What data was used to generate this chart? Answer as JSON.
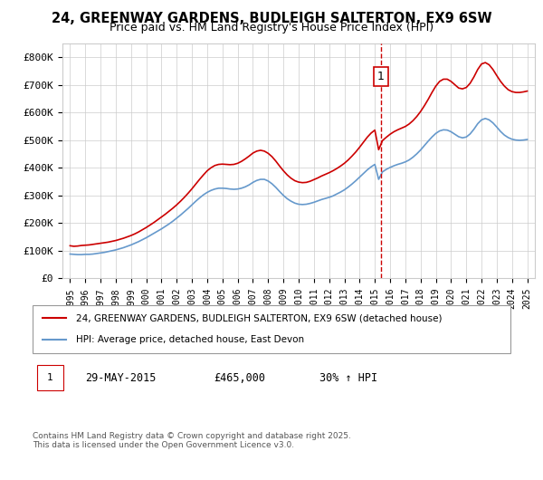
{
  "title": "24, GREENWAY GARDENS, BUDLEIGH SALTERTON, EX9 6SW",
  "subtitle": "Price paid vs. HM Land Registry's House Price Index (HPI)",
  "legend_line1": "24, GREENWAY GARDENS, BUDLEIGH SALTERTON, EX9 6SW (detached house)",
  "legend_line2": "HPI: Average price, detached house, East Devon",
  "annotation_label": "1",
  "annotation_date": "29-MAY-2015",
  "annotation_price": "£465,000",
  "annotation_hpi": "30% ↑ HPI",
  "footer": "Contains HM Land Registry data © Crown copyright and database right 2025.\nThis data is licensed under the Open Government Licence v3.0.",
  "vline_x": 2015.41,
  "red_color": "#cc0000",
  "blue_color": "#6699cc",
  "ylim": [
    0,
    850000
  ],
  "yticks": [
    0,
    100000,
    200000,
    300000,
    400000,
    500000,
    600000,
    700000,
    800000
  ],
  "ytick_labels": [
    "£0",
    "£100K",
    "£200K",
    "£300K",
    "£400K",
    "£500K",
    "£600K",
    "£700K",
    "£800K"
  ],
  "xlim": [
    1994.5,
    2025.5
  ],
  "xticks": [
    1995,
    1996,
    1997,
    1998,
    1999,
    2000,
    2001,
    2002,
    2003,
    2004,
    2005,
    2006,
    2007,
    2008,
    2009,
    2010,
    2011,
    2012,
    2013,
    2014,
    2015,
    2016,
    2017,
    2018,
    2019,
    2020,
    2021,
    2022,
    2023,
    2024,
    2025
  ],
  "red_x": [
    1995.0,
    1995.25,
    1995.5,
    1995.75,
    1996.0,
    1996.25,
    1996.5,
    1996.75,
    1997.0,
    1997.25,
    1997.5,
    1997.75,
    1998.0,
    1998.25,
    1998.5,
    1998.75,
    1999.0,
    1999.25,
    1999.5,
    1999.75,
    2000.0,
    2000.25,
    2000.5,
    2000.75,
    2001.0,
    2001.25,
    2001.5,
    2001.75,
    2002.0,
    2002.25,
    2002.5,
    2002.75,
    2003.0,
    2003.25,
    2003.5,
    2003.75,
    2004.0,
    2004.25,
    2004.5,
    2004.75,
    2005.0,
    2005.25,
    2005.5,
    2005.75,
    2006.0,
    2006.25,
    2006.5,
    2006.75,
    2007.0,
    2007.25,
    2007.5,
    2007.75,
    2008.0,
    2008.25,
    2008.5,
    2008.75,
    2009.0,
    2009.25,
    2009.5,
    2009.75,
    2010.0,
    2010.25,
    2010.5,
    2010.75,
    2011.0,
    2011.25,
    2011.5,
    2011.75,
    2012.0,
    2012.25,
    2012.5,
    2012.75,
    2013.0,
    2013.25,
    2013.5,
    2013.75,
    2014.0,
    2014.25,
    2014.5,
    2014.75,
    2015.0,
    2015.25,
    2015.5,
    2015.75,
    2016.0,
    2016.25,
    2016.5,
    2016.75,
    2017.0,
    2017.25,
    2017.5,
    2017.75,
    2018.0,
    2018.25,
    2018.5,
    2018.75,
    2019.0,
    2019.25,
    2019.5,
    2019.75,
    2020.0,
    2020.25,
    2020.5,
    2020.75,
    2021.0,
    2021.25,
    2021.5,
    2021.75,
    2022.0,
    2022.25,
    2022.5,
    2022.75,
    2023.0,
    2023.25,
    2023.5,
    2023.75,
    2024.0,
    2024.25,
    2024.5,
    2024.75,
    2025.0
  ],
  "red_y": [
    118000,
    116000,
    117000,
    119000,
    120000,
    121000,
    123000,
    125000,
    127000,
    129000,
    131000,
    134000,
    137000,
    141000,
    145000,
    150000,
    155000,
    161000,
    168000,
    176000,
    184000,
    193000,
    202000,
    212000,
    222000,
    232000,
    243000,
    254000,
    266000,
    279000,
    293000,
    308000,
    324000,
    341000,
    358000,
    374000,
    389000,
    400000,
    408000,
    412000,
    413000,
    412000,
    411000,
    412000,
    416000,
    423000,
    432000,
    442000,
    453000,
    460000,
    463000,
    460000,
    452000,
    440000,
    424000,
    406000,
    389000,
    374000,
    362000,
    353000,
    348000,
    346000,
    347000,
    351000,
    357000,
    363000,
    370000,
    376000,
    382000,
    389000,
    397000,
    406000,
    416000,
    428000,
    442000,
    457000,
    474000,
    492000,
    510000,
    525000,
    536000,
    465000,
    498000,
    510000,
    521000,
    530000,
    537000,
    543000,
    549000,
    558000,
    570000,
    585000,
    603000,
    624000,
    647000,
    672000,
    695000,
    712000,
    720000,
    720000,
    712000,
    700000,
    688000,
    685000,
    690000,
    705000,
    728000,
    755000,
    775000,
    780000,
    772000,
    755000,
    733000,
    712000,
    695000,
    682000,
    675000,
    672000,
    672000,
    674000,
    677000
  ],
  "blue_x": [
    1995.0,
    1995.25,
    1995.5,
    1995.75,
    1996.0,
    1996.25,
    1996.5,
    1996.75,
    1997.0,
    1997.25,
    1997.5,
    1997.75,
    1998.0,
    1998.25,
    1998.5,
    1998.75,
    1999.0,
    1999.25,
    1999.5,
    1999.75,
    2000.0,
    2000.25,
    2000.5,
    2000.75,
    2001.0,
    2001.25,
    2001.5,
    2001.75,
    2002.0,
    2002.25,
    2002.5,
    2002.75,
    2003.0,
    2003.25,
    2003.5,
    2003.75,
    2004.0,
    2004.25,
    2004.5,
    2004.75,
    2005.0,
    2005.25,
    2005.5,
    2005.75,
    2006.0,
    2006.25,
    2006.5,
    2006.75,
    2007.0,
    2007.25,
    2007.5,
    2007.75,
    2008.0,
    2008.25,
    2008.5,
    2008.75,
    2009.0,
    2009.25,
    2009.5,
    2009.75,
    2010.0,
    2010.25,
    2010.5,
    2010.75,
    2011.0,
    2011.25,
    2011.5,
    2011.75,
    2012.0,
    2012.25,
    2012.5,
    2012.75,
    2013.0,
    2013.25,
    2013.5,
    2013.75,
    2014.0,
    2014.25,
    2014.5,
    2014.75,
    2015.0,
    2015.25,
    2015.5,
    2015.75,
    2016.0,
    2016.25,
    2016.5,
    2016.75,
    2017.0,
    2017.25,
    2017.5,
    2017.75,
    2018.0,
    2018.25,
    2018.5,
    2018.75,
    2019.0,
    2019.25,
    2019.5,
    2019.75,
    2020.0,
    2020.25,
    2020.5,
    2020.75,
    2021.0,
    2021.25,
    2021.5,
    2021.75,
    2022.0,
    2022.25,
    2022.5,
    2022.75,
    2023.0,
    2023.25,
    2023.5,
    2023.75,
    2024.0,
    2024.25,
    2024.5,
    2024.75,
    2025.0
  ],
  "blue_y": [
    88000,
    87000,
    86000,
    86000,
    87000,
    87000,
    88000,
    90000,
    92000,
    94000,
    97000,
    100000,
    103000,
    107000,
    111000,
    116000,
    121000,
    127000,
    133000,
    140000,
    147000,
    155000,
    163000,
    171000,
    179000,
    188000,
    197000,
    207000,
    218000,
    229000,
    241000,
    253000,
    266000,
    279000,
    291000,
    302000,
    311000,
    318000,
    323000,
    326000,
    326000,
    325000,
    323000,
    322000,
    323000,
    326000,
    331000,
    338000,
    347000,
    354000,
    358000,
    358000,
    352000,
    342000,
    329000,
    314000,
    300000,
    288000,
    279000,
    272000,
    268000,
    267000,
    268000,
    271000,
    275000,
    280000,
    285000,
    289000,
    293000,
    298000,
    305000,
    312000,
    320000,
    330000,
    341000,
    353000,
    366000,
    379000,
    392000,
    403000,
    412000,
    358000,
    385000,
    394000,
    401000,
    407000,
    412000,
    416000,
    421000,
    428000,
    438000,
    450000,
    464000,
    480000,
    496000,
    511000,
    524000,
    533000,
    537000,
    536000,
    530000,
    521000,
    512000,
    508000,
    511000,
    522000,
    539000,
    559000,
    573000,
    578000,
    573000,
    562000,
    547000,
    531000,
    518000,
    509000,
    503000,
    500000,
    499000,
    500000,
    502000
  ]
}
